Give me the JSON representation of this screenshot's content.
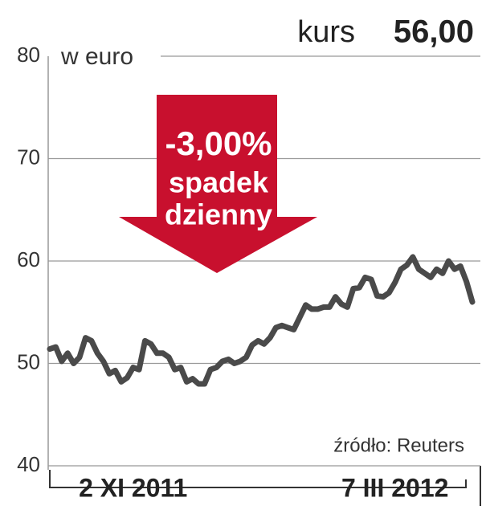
{
  "chart_data": {
    "type": "line",
    "title_label": "kurs",
    "title_value": "56,00",
    "unit": "w euro",
    "annotation": {
      "change": "-3,00%",
      "line1": "spadek",
      "line2": "dzienny"
    },
    "source": "źródło: Reuters",
    "color": "#4a4a4a",
    "categories": [
      null,
      null,
      null,
      null,
      null,
      null,
      null,
      null,
      null,
      null,
      null,
      null,
      null,
      null,
      "2 XI 2011",
      null,
      null,
      null,
      null,
      null,
      null,
      null,
      null,
      null,
      null,
      null,
      null,
      null,
      null,
      null,
      null,
      null,
      null,
      null,
      null,
      null,
      null,
      null,
      null,
      null,
      null,
      null,
      null,
      null,
      null,
      null,
      null,
      null,
      null,
      null,
      null,
      null,
      null,
      null,
      null,
      null,
      null,
      null,
      "7 III 2012",
      null,
      null,
      null,
      null,
      null,
      null,
      null,
      null,
      null,
      null,
      null,
      null,
      null
    ],
    "values": [
      51.4,
      51.6,
      50.2,
      51.0,
      50.0,
      50.6,
      52.5,
      52.2,
      51.0,
      50.2,
      49.0,
      49.3,
      48.2,
      48.6,
      49.6,
      49.4,
      52.2,
      51.9,
      51.0,
      51.0,
      50.6,
      49.4,
      49.6,
      48.2,
      48.5,
      48.0,
      48.0,
      49.4,
      49.6,
      50.2,
      50.4,
      50.0,
      50.2,
      50.6,
      51.8,
      52.2,
      51.9,
      52.5,
      53.5,
      53.7,
      53.5,
      53.3,
      54.5,
      55.7,
      55.3,
      55.3,
      55.5,
      55.5,
      56.5,
      55.8,
      55.5,
      57.3,
      57.4,
      58.4,
      58.2,
      56.6,
      56.5,
      56.9,
      57.9,
      59.2,
      59.6,
      60.4,
      59.2,
      58.8,
      58.4,
      59.2,
      58.8,
      60.0,
      59.2,
      59.5,
      58.0,
      56.0
    ],
    "ylim": [
      40,
      80
    ],
    "yticks": [
      40,
      50,
      60,
      70,
      80
    ],
    "grid": true
  }
}
